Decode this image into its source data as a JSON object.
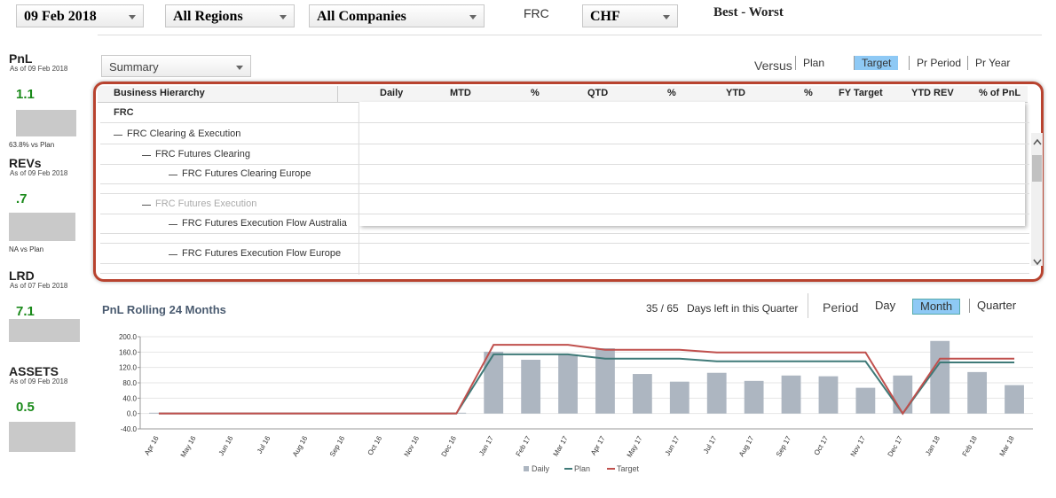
{
  "toolbar": {
    "date": "09 Feb 2018",
    "region": "All Regions",
    "company": "All Companies",
    "entity": "FRC",
    "currency": "CHF",
    "view": "Best - Worst"
  },
  "sidebar": [
    {
      "title": "PnL",
      "asof": "As of 09 Feb 2018",
      "value": "1.1",
      "note": "63.8% vs Plan"
    },
    {
      "title": "REVs",
      "asof": "As of 09 Feb 2018",
      "value": ".7",
      "note": "NA vs Plan"
    },
    {
      "title": "LRD",
      "asof": "As of 07 Feb 2018",
      "value": "7.1"
    },
    {
      "title": "ASSETS",
      "asof": "As of 09 Feb 2018",
      "value": "0.5"
    }
  ],
  "summary": {
    "selector": "Summary",
    "versus": "Versus",
    "options": [
      "Plan",
      "Target",
      "Pr Period",
      "Pr Year"
    ],
    "selected": 1
  },
  "table": {
    "headers": [
      "Business Hierarchy",
      "Daily",
      "MTD",
      "%",
      "QTD",
      "%",
      "YTD",
      "%",
      "FY Target",
      "YTD REV",
      "% of PnL"
    ],
    "rows": [
      "FRC",
      "FRC Clearing & Execution",
      "FRC Futures Clearing",
      "FRC Futures Clearing Europe",
      "FRC Futures Execution",
      "FRC Futures Execution Flow Australia",
      "FRC Futures Execution Flow Europe"
    ]
  },
  "period": {
    "days": "35 / 65",
    "days_text": "Days left in this Quarter",
    "label": "Period",
    "options": [
      "Day",
      "Month",
      "Quarter"
    ],
    "selected": 1
  },
  "chart_data": {
    "type": "bar",
    "title": "PnL Rolling 24 Months",
    "categories": [
      "Apr 16",
      "May 16",
      "Jun 16",
      "Jul 16",
      "Aug 16",
      "Sep 16",
      "Oct 16",
      "Nov 16",
      "Dec 16",
      "Jan 17",
      "Feb 17",
      "Mar 17",
      "Apr 17",
      "May 17",
      "Jun 17",
      "Jul 17",
      "Aug 17",
      "Sep 17",
      "Oct 17",
      "Nov 17",
      "Dec 17",
      "Jan 18",
      "Feb 18",
      "Mar 18"
    ],
    "series": [
      {
        "name": "Daily",
        "type": "bar",
        "color": "#adb6c1",
        "values": [
          2,
          1,
          1,
          1,
          1,
          1,
          1,
          1,
          2,
          161,
          140,
          154,
          170,
          103,
          83,
          106,
          85,
          99,
          97,
          67,
          99,
          189,
          108,
          74
        ]
      },
      {
        "name": "Plan",
        "type": "line",
        "color": "#3f7a78",
        "values": [
          0,
          0,
          0,
          0,
          0,
          0,
          0,
          0,
          0,
          154,
          154,
          154,
          143,
          143,
          143,
          136,
          136,
          136,
          136,
          136,
          0,
          133,
          133,
          133
        ]
      },
      {
        "name": "Target",
        "type": "line",
        "color": "#c0504d",
        "values": [
          0,
          0,
          0,
          0,
          0,
          0,
          0,
          0,
          0,
          179,
          179,
          179,
          166,
          166,
          166,
          159,
          159,
          159,
          159,
          159,
          0,
          143,
          143,
          143
        ]
      }
    ],
    "ylim": [
      -40,
      200
    ],
    "yticks": [
      {
        "value": -40,
        "label": "-40.0"
      },
      {
        "value": 0,
        "label": "0.0"
      },
      {
        "value": 40,
        "label": "40.0"
      },
      {
        "value": 80,
        "label": "80.0"
      },
      {
        "value": 120,
        "label": "120.0"
      },
      {
        "value": 160,
        "label": "160.0"
      },
      {
        "value": 200,
        "label": "200.0"
      }
    ],
    "grid": true
  }
}
